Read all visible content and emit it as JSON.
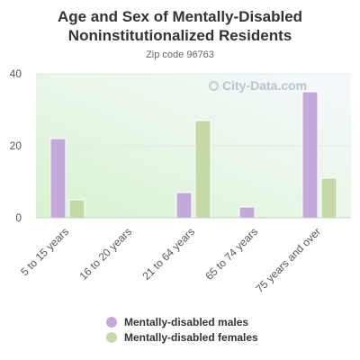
{
  "chart_data": {
    "type": "bar",
    "title_lines": [
      "Age and Sex of Mentally-Disabled",
      "Noninstitutionalized Residents"
    ],
    "subtitle": "Zip code 96763",
    "categories": [
      "5 to 15 years",
      "16 to 20 years",
      "21 to 64 years",
      "65 to 74 years",
      "75 years and over"
    ],
    "series": [
      {
        "name": "Mentally-disabled males",
        "color": "#c3a9da",
        "values": [
          22,
          0,
          7,
          3,
          35
        ]
      },
      {
        "name": "Mentally-disabled females",
        "color": "#c5d9a6",
        "values": [
          5,
          0,
          27,
          0,
          11
        ]
      }
    ],
    "ylim": [
      0,
      40
    ],
    "yticks": [
      0,
      20,
      40
    ],
    "grid": true,
    "legend_position": "bottom"
  },
  "watermark": "City-Data.com"
}
